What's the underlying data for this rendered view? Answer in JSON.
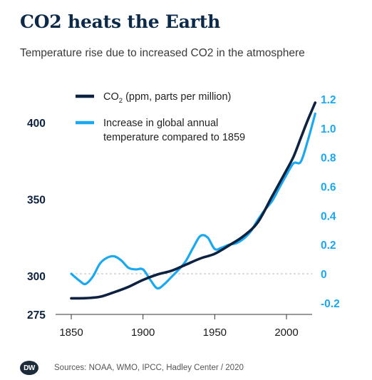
{
  "title": "CO2 heats the Earth",
  "subtitle": "Temperature rise due to increased CO2 in the atmosphere",
  "logo_text": "DW",
  "source": "Sources: NOAA, WMO, IPCC, Hadley Center / 2020",
  "colors": {
    "co2": "#0d2140",
    "temp": "#1aa8f0",
    "left_axis_text": "#0d2140",
    "right_axis_text": "#1aa8f0",
    "zero_line": "#bbbbbb"
  },
  "chart_data": {
    "type": "line",
    "xlabel": "",
    "x_ticks": [
      1850,
      1900,
      1950,
      2000
    ],
    "xlim": [
      1842,
      2022
    ],
    "grid": false,
    "legend_position": "top",
    "left_axis": {
      "ticks": [
        275,
        300,
        350,
        400
      ],
      "ylim": [
        275,
        415
      ]
    },
    "right_axis": {
      "ticks": [
        "-0.2",
        "0",
        "0.2",
        "0.4",
        "0.6",
        "0.8",
        "1.0",
        "1.2"
      ],
      "ylim": [
        -0.27,
        1.25
      ]
    },
    "series": [
      {
        "name": "CO (ppm, parts per million)",
        "name_sub": "2",
        "axis": "left",
        "points": [
          [
            1850,
            285.5
          ],
          [
            1860,
            285.6
          ],
          [
            1870,
            286.5
          ],
          [
            1880,
            289.5
          ],
          [
            1890,
            293
          ],
          [
            1900,
            297.5
          ],
          [
            1910,
            301
          ],
          [
            1920,
            303.5
          ],
          [
            1930,
            307.5
          ],
          [
            1940,
            311.5
          ],
          [
            1950,
            314.5
          ],
          [
            1960,
            320
          ],
          [
            1970,
            326
          ],
          [
            1980,
            335
          ],
          [
            1990,
            352
          ],
          [
            2000,
            369
          ],
          [
            2005,
            378
          ],
          [
            2010,
            390
          ],
          [
            2015,
            402
          ],
          [
            2020,
            413
          ]
        ]
      },
      {
        "name": "Increase in global annual temperature compared to 1859",
        "axis": "right",
        "points": [
          [
            1850,
            0.0
          ],
          [
            1856,
            -0.05
          ],
          [
            1860,
            -0.07
          ],
          [
            1865,
            -0.02
          ],
          [
            1870,
            0.07
          ],
          [
            1875,
            0.11
          ],
          [
            1880,
            0.12
          ],
          [
            1885,
            0.09
          ],
          [
            1890,
            0.04
          ],
          [
            1895,
            0.03
          ],
          [
            1900,
            0.03
          ],
          [
            1905,
            -0.04
          ],
          [
            1910,
            -0.1
          ],
          [
            1915,
            -0.07
          ],
          [
            1920,
            -0.02
          ],
          [
            1925,
            0.03
          ],
          [
            1930,
            0.09
          ],
          [
            1935,
            0.18
          ],
          [
            1940,
            0.26
          ],
          [
            1945,
            0.25
          ],
          [
            1950,
            0.17
          ],
          [
            1955,
            0.18
          ],
          [
            1960,
            0.2
          ],
          [
            1965,
            0.21
          ],
          [
            1970,
            0.24
          ],
          [
            1975,
            0.29
          ],
          [
            1980,
            0.37
          ],
          [
            1985,
            0.44
          ],
          [
            1990,
            0.5
          ],
          [
            1995,
            0.59
          ],
          [
            2000,
            0.68
          ],
          [
            2005,
            0.76
          ],
          [
            2010,
            0.77
          ],
          [
            2015,
            0.92
          ],
          [
            2020,
            1.1
          ]
        ]
      }
    ]
  }
}
